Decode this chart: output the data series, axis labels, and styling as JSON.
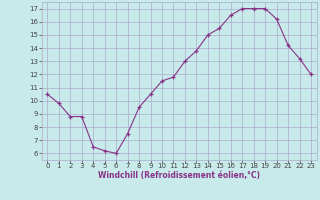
{
  "x": [
    0,
    1,
    2,
    3,
    4,
    5,
    6,
    7,
    8,
    9,
    10,
    11,
    12,
    13,
    14,
    15,
    16,
    17,
    18,
    19,
    20,
    21,
    22,
    23
  ],
  "y": [
    10.5,
    9.8,
    8.8,
    8.8,
    6.5,
    6.2,
    6.0,
    7.5,
    9.5,
    10.5,
    11.5,
    11.8,
    13.0,
    13.8,
    15.0,
    15.5,
    16.5,
    17.0,
    17.0,
    17.0,
    16.2,
    14.2,
    13.2,
    12.0
  ],
  "line_color": "#883388",
  "marker": "+",
  "bg_color": "#c8eaea",
  "grid_color": "#aaaacc",
  "xlabel": "Windchill (Refroidissement éolien,°C)",
  "ylabel_ticks": [
    6,
    7,
    8,
    9,
    10,
    11,
    12,
    13,
    14,
    15,
    16,
    17
  ],
  "xlim": [
    -0.5,
    23.5
  ],
  "ylim": [
    5.5,
    17.5
  ],
  "tick_fontsize": 5.0,
  "xlabel_fontsize": 5.5
}
